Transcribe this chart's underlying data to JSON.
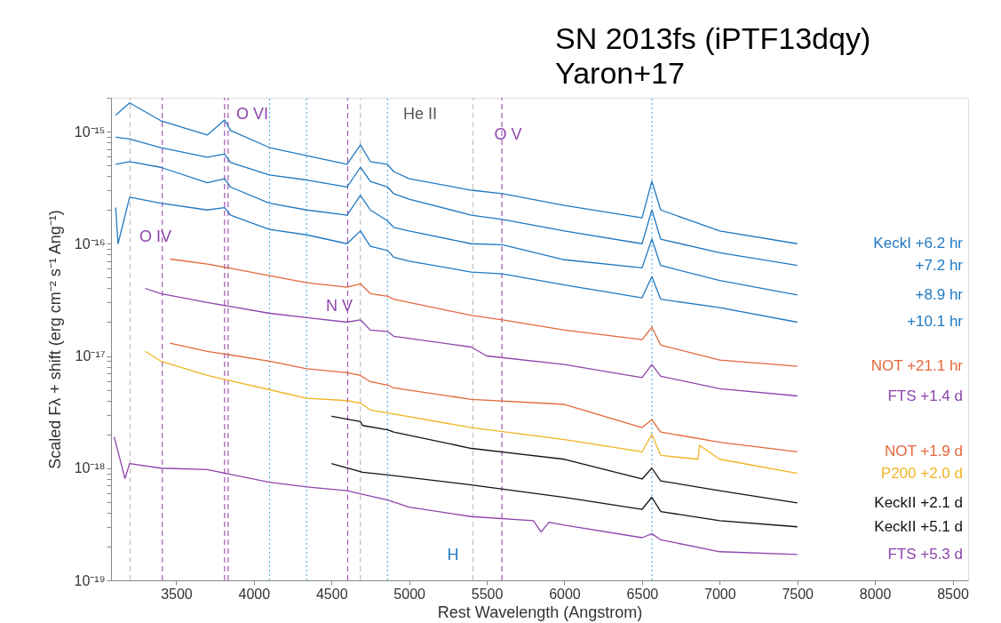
{
  "chart_data": {
    "type": "line",
    "title": "SN 2013fs (iPTF13dqy)",
    "subtitle": "Yaron+17",
    "xlabel": "Rest Wavelength (Angstrom)",
    "ylabel": "Scaled Fλ + shift (erg cm⁻² s⁻¹ Ang⁻¹)",
    "log": "y",
    "grid": false,
    "legend": false,
    "xlim": [
      3080,
      8600
    ],
    "xticks": [
      3500,
      4000,
      4500,
      5000,
      5500,
      6000,
      6500,
      7000,
      7500,
      8000,
      8500
    ],
    "ylim": [
      1e-19,
      2e-15
    ],
    "yticks": [
      {
        "value": 1e-19,
        "label": "10⁻¹⁹"
      },
      {
        "value": 2e-19,
        "label": null
      },
      {
        "value": 3e-19,
        "label": null
      },
      {
        "value": 4e-19,
        "label": null
      },
      {
        "value": 5e-19,
        "label": null
      },
      {
        "value": 6e-19,
        "label": null
      },
      {
        "value": 7e-19,
        "label": null
      },
      {
        "value": 8e-19,
        "label": null
      },
      {
        "value": 9e-19,
        "label": null
      },
      {
        "value": 1e-18,
        "label": "10⁻¹⁸"
      },
      {
        "value": 2e-18,
        "label": null
      },
      {
        "value": 3e-18,
        "label": null
      },
      {
        "value": 4e-18,
        "label": null
      },
      {
        "value": 5e-18,
        "label": null
      },
      {
        "value": 6e-18,
        "label": null
      },
      {
        "value": 7e-18,
        "label": null
      },
      {
        "value": 8e-18,
        "label": null
      },
      {
        "value": 9e-18,
        "label": null
      },
      {
        "value": 1e-17,
        "label": "10⁻¹⁷"
      },
      {
        "value": 2e-17,
        "label": null
      },
      {
        "value": 3e-17,
        "label": null
      },
      {
        "value": 4e-17,
        "label": null
      },
      {
        "value": 5e-17,
        "label": null
      },
      {
        "value": 6e-17,
        "label": null
      },
      {
        "value": 7e-17,
        "label": null
      },
      {
        "value": 8e-17,
        "label": null
      },
      {
        "value": 9e-17,
        "label": null
      },
      {
        "value": 1e-16,
        "label": "10⁻¹⁶"
      },
      {
        "value": 2e-16,
        "label": null
      },
      {
        "value": 3e-16,
        "label": null
      },
      {
        "value": 4e-16,
        "label": null
      },
      {
        "value": 5e-16,
        "label": null
      },
      {
        "value": 6e-16,
        "label": null
      },
      {
        "value": 7e-16,
        "label": null
      },
      {
        "value": 8e-16,
        "label": null
      },
      {
        "value": 9e-16,
        "label": null
      },
      {
        "value": 1e-15,
        "label": "10⁻¹⁵"
      },
      {
        "value": 2e-15,
        "label": null
      }
    ],
    "series": [
      {
        "name": "KeckI +6.2 hr",
        "color": "#1f78c1",
        "x": [
          3110,
          3200,
          3400,
          3700,
          3811,
          3850,
          4100,
          4340,
          4600,
          4686,
          4750,
          4861,
          4900,
          5000,
          5400,
          5600,
          6000,
          6500,
          6563,
          6620,
          7000,
          7500
        ],
        "values": [
          1.4e-15,
          1.8e-15,
          1.25e-15,
          9.3e-16,
          1.27e-15,
          1.02e-15,
          7.2e-16,
          6.1e-16,
          5.1e-16,
          7.6e-16,
          5.4e-16,
          5.1e-16,
          4.4e-16,
          3.8e-16,
          3e-16,
          2.8e-16,
          2.2e-16,
          1.7e-16,
          3.6e-16,
          2e-16,
          1.3e-16,
          1e-16
        ]
      },
      {
        "name": "+7.2 hr",
        "color": "#1f78c1",
        "x": [
          3110,
          3200,
          3400,
          3700,
          3811,
          3850,
          4100,
          4340,
          4600,
          4686,
          4750,
          4861,
          4900,
          5000,
          5400,
          5600,
          6000,
          6500,
          6563,
          6620,
          7000,
          7500
        ],
        "values": [
          8.9e-16,
          8.6e-16,
          7.2e-16,
          5.9e-16,
          6.3e-16,
          5.3e-16,
          4.1e-16,
          3.7e-16,
          3.2e-16,
          4.8e-16,
          3.6e-16,
          3.2e-16,
          2.8e-16,
          2.5e-16,
          1.8e-16,
          1.65e-16,
          1.3e-16,
          1e-16,
          2e-16,
          1.1e-16,
          8.3e-17,
          6.4e-17
        ]
      },
      {
        "name": "+8.9 hr",
        "color": "#1f78c1",
        "x": [
          3110,
          3200,
          3400,
          3700,
          3811,
          3850,
          4100,
          4340,
          4600,
          4686,
          4750,
          4861,
          4900,
          5000,
          5400,
          5600,
          6000,
          6500,
          6563,
          6620,
          7000,
          7500
        ],
        "values": [
          5.1e-16,
          5.4e-16,
          4.8e-16,
          3.5e-16,
          3.8e-16,
          3.2e-16,
          2.3e-16,
          2e-16,
          1.8e-16,
          2.7e-16,
          2e-16,
          1.6e-16,
          1.4e-16,
          1.3e-16,
          1e-16,
          9.8e-17,
          7.2e-17,
          6.1e-17,
          1.1e-16,
          6.4e-17,
          4.7e-17,
          3.5e-17
        ]
      },
      {
        "name": "+10.1 hr",
        "color": "#1f78c1",
        "x": [
          3110,
          3125,
          3200,
          3400,
          3700,
          3811,
          3850,
          4100,
          4340,
          4600,
          4686,
          4750,
          4861,
          4900,
          5000,
          5400,
          5600,
          6000,
          6500,
          6563,
          6620,
          7000,
          7500
        ],
        "values": [
          2.1e-16,
          1e-16,
          2.6e-16,
          2.3e-16,
          2e-16,
          2.1e-16,
          1.8e-16,
          1.34e-16,
          1.2e-16,
          1e-16,
          1.3e-16,
          9.5e-17,
          8.7e-17,
          7.6e-17,
          7e-17,
          5.6e-17,
          5.4e-17,
          4.3e-17,
          3.3e-17,
          5.1e-17,
          3.2e-17,
          2.7e-17,
          2e-17
        ]
      },
      {
        "name": "NOT +21.1 hr",
        "color": "#e4673a",
        "x": [
          3460,
          3700,
          4100,
          4340,
          4600,
          4686,
          4750,
          4861,
          4900,
          5400,
          5600,
          6000,
          6500,
          6563,
          6620,
          7000,
          7500
        ],
        "values": [
          7.3e-17,
          6.6e-17,
          5.2e-17,
          4.5e-17,
          4.1e-17,
          4.4e-17,
          3.6e-17,
          3.4e-17,
          3.2e-17,
          2.3e-17,
          2.1e-17,
          1.7e-17,
          1.4e-17,
          1.8e-17,
          1.25e-17,
          9.2e-18,
          8.1e-18
        ]
      },
      {
        "name": "FTS +1.4 d",
        "color": "#8e44ad",
        "x": [
          3300,
          3400,
          3700,
          4100,
          4340,
          4600,
          4686,
          4750,
          4861,
          4900,
          5400,
          5500,
          6000,
          6500,
          6563,
          6620,
          7000,
          7500
        ],
        "values": [
          4e-17,
          3.6e-17,
          3e-17,
          2.4e-17,
          2.2e-17,
          2e-17,
          2.1e-17,
          1.7e-17,
          1.65e-17,
          1.5e-17,
          1.2e-17,
          1e-17,
          8.4e-18,
          6.4e-18,
          8.4e-18,
          6.6e-18,
          5.1e-18,
          4.4e-18
        ]
      },
      {
        "name": "NOT +1.9 d",
        "color": "#e4673a",
        "x": [
          3460,
          3700,
          4100,
          4340,
          4600,
          4686,
          4750,
          4861,
          4900,
          5400,
          6000,
          6500,
          6563,
          6620,
          7000,
          7500
        ],
        "values": [
          1.3e-17,
          1.1e-17,
          9e-18,
          7.7e-18,
          7.1e-18,
          6.7e-18,
          5.9e-18,
          5.5e-18,
          5.2e-18,
          4.1e-18,
          3.7e-18,
          2.3e-18,
          2.7e-18,
          2.1e-18,
          1.7e-18,
          1.4e-18
        ]
      },
      {
        "name": "P200 +2.0 d",
        "color": "#f0b323",
        "x": [
          3300,
          3400,
          3700,
          4100,
          4340,
          4600,
          4686,
          4750,
          4861,
          5400,
          6000,
          6500,
          6563,
          6620,
          6860,
          6870,
          7000,
          7500
        ],
        "values": [
          1.1e-17,
          9e-18,
          6.7e-18,
          5e-18,
          4.2e-18,
          4e-18,
          3.8e-18,
          3.3e-18,
          3.1e-18,
          2.3e-18,
          1.8e-18,
          1.4e-18,
          2e-18,
          1.3e-18,
          1.2e-18,
          1.6e-18,
          1.2e-18,
          9e-19
        ]
      },
      {
        "name": "KeckII +2.1 d",
        "color": "#111111",
        "x": [
          4500,
          4686,
          4700,
          4861,
          4900,
          5400,
          6000,
          6500,
          6563,
          6620,
          7000,
          7500
        ],
        "values": [
          2.9e-18,
          2.6e-18,
          2.4e-18,
          2.2e-18,
          2.1e-18,
          1.5e-18,
          1.2e-18,
          8e-19,
          1e-18,
          7.7e-19,
          6.3e-19,
          4.9e-19
        ]
      },
      {
        "name": "KeckII +5.1 d",
        "color": "#111111",
        "x": [
          4500,
          4700,
          4861,
          5400,
          6000,
          6500,
          6563,
          6620,
          7000,
          7500
        ],
        "values": [
          1.1e-18,
          9.2e-19,
          8.7e-19,
          7.1e-19,
          5.5e-19,
          4.3e-19,
          5.5e-19,
          4.1e-19,
          3.4e-19,
          3e-19
        ]
      },
      {
        "name": "FTS +5.3 d",
        "color": "#8e44ad",
        "x": [
          3100,
          3170,
          3200,
          3400,
          3700,
          4100,
          4340,
          4600,
          4861,
          5000,
          5400,
          5800,
          5850,
          5900,
          6000,
          6500,
          6563,
          6620,
          7000,
          7500
        ],
        "values": [
          1.9e-18,
          8.1e-19,
          1.1e-18,
          1e-18,
          9.7e-19,
          7.5e-19,
          6.8e-19,
          6.3e-19,
          5.2e-19,
          4.5e-19,
          3.7e-19,
          3.4e-19,
          2.7e-19,
          3.3e-19,
          3.1e-19,
          2.4e-19,
          2.6e-19,
          2.3e-19,
          1.8e-19,
          1.7e-19
        ]
      }
    ],
    "ref_lines": [
      {
        "axis": "x",
        "value": 3203,
        "color": "#c0c0c0",
        "line_style": "dashed"
      },
      {
        "axis": "x",
        "value": 4686,
        "color": "#c0c0c0",
        "line_style": "dashed"
      },
      {
        "axis": "x",
        "value": 5411,
        "color": "#c0c0c0",
        "line_style": "dashed"
      },
      {
        "axis": "x",
        "value": 4101,
        "color": "#5ab4e6",
        "line_style": "dotted"
      },
      {
        "axis": "x",
        "value": 4340,
        "color": "#5ab4e6",
        "line_style": "dotted"
      },
      {
        "axis": "x",
        "value": 4861,
        "color": "#5ab4e6",
        "line_style": "dotted"
      },
      {
        "axis": "x",
        "value": 6563,
        "color": "#5ab4e6",
        "line_style": "dotted"
      },
      {
        "axis": "x",
        "value": 3410,
        "color": "#a05ab4",
        "line_style": "dashed"
      },
      {
        "axis": "x",
        "value": 3811,
        "color": "#a05ab4",
        "line_style": "dashed"
      },
      {
        "axis": "x",
        "value": 3834,
        "color": "#a05ab4",
        "line_style": "dashed"
      },
      {
        "axis": "x",
        "value": 4604,
        "color": "#a05ab4",
        "line_style": "dashed"
      },
      {
        "axis": "x",
        "value": 5597,
        "color": "#a05ab4",
        "line_style": "dashed"
      }
    ],
    "annotations": [
      "O IV",
      "O VI",
      "He II",
      "O V",
      "N V",
      "H"
    ]
  }
}
